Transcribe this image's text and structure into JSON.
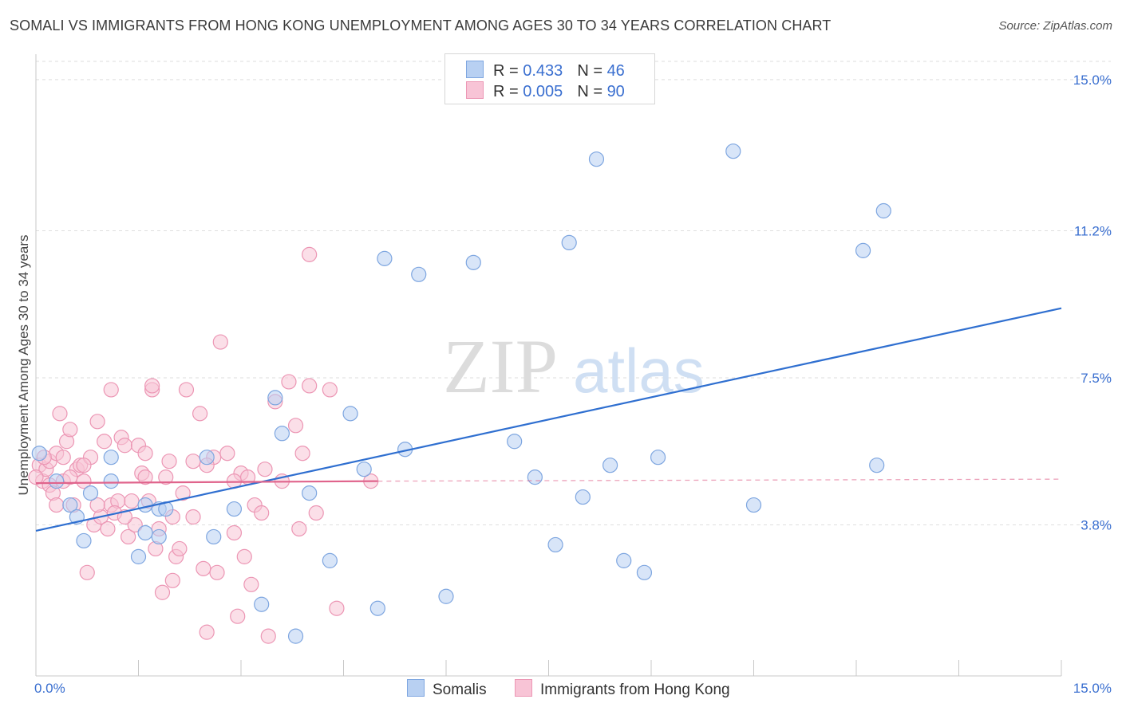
{
  "title": "SOMALI VS IMMIGRANTS FROM HONG KONG UNEMPLOYMENT AMONG AGES 30 TO 34 YEARS CORRELATION CHART",
  "source": "Source: ZipAtlas.com",
  "watermark": {
    "zip": "ZIP",
    "atlas": "atlas"
  },
  "legend": {
    "r_label": "R =",
    "n_label": "N =",
    "rows": [
      {
        "name": "Somalis",
        "r": "0.433",
        "n": "46",
        "fill": "#b8d0f2",
        "stroke": "#7ea6e0"
      },
      {
        "name": "Immigrants from Hong Kong",
        "r": "0.005",
        "n": "90",
        "fill": "#f8c4d6",
        "stroke": "#ec96b4"
      }
    ]
  },
  "chart_data": {
    "type": "scatter",
    "title": "SOMALI VS IMMIGRANTS FROM HONG KONG UNEMPLOYMENT AMONG AGES 30 TO 34 YEARS CORRELATION CHART",
    "xlabel": "",
    "ylabel": "Unemployment Among Ages 30 to 34 years",
    "xlim": [
      0,
      15
    ],
    "ylim": [
      0,
      15.5
    ],
    "x_tick_labels": [
      "0.0%",
      "15.0%"
    ],
    "y_ticks": [
      3.8,
      7.5,
      11.2,
      15.0
    ],
    "y_tick_labels": [
      "3.8%",
      "7.5%",
      "11.2%",
      "15.0%"
    ],
    "grid": true,
    "series": [
      {
        "name": "Somalis",
        "color": "#7ea6e0",
        "fill": "#b8d0f2",
        "line_color": "#2f6fd0",
        "trend": {
          "x": [
            0,
            15
          ],
          "y": [
            3.65,
            9.25
          ],
          "dashed_after": null
        },
        "points": [
          [
            0.05,
            5.6
          ],
          [
            0.3,
            4.9
          ],
          [
            0.5,
            4.3
          ],
          [
            0.6,
            4.0
          ],
          [
            0.7,
            3.4
          ],
          [
            0.8,
            4.6
          ],
          [
            1.1,
            5.5
          ],
          [
            1.6,
            3.6
          ],
          [
            1.5,
            3.0
          ],
          [
            1.6,
            4.3
          ],
          [
            1.8,
            3.5
          ],
          [
            1.8,
            4.2
          ],
          [
            1.9,
            4.2
          ],
          [
            2.5,
            5.5
          ],
          [
            2.6,
            3.5
          ],
          [
            2.9,
            4.2
          ],
          [
            3.3,
            1.8
          ],
          [
            3.5,
            7.0
          ],
          [
            3.6,
            6.1
          ],
          [
            3.8,
            1.0
          ],
          [
            4.0,
            4.6
          ],
          [
            4.3,
            2.9
          ],
          [
            4.6,
            6.6
          ],
          [
            4.8,
            5.2
          ],
          [
            5.0,
            1.7
          ],
          [
            5.1,
            10.5
          ],
          [
            5.4,
            5.7
          ],
          [
            5.6,
            10.1
          ],
          [
            6.0,
            2.0
          ],
          [
            6.4,
            10.4
          ],
          [
            7.0,
            5.9
          ],
          [
            7.3,
            5.0
          ],
          [
            7.6,
            3.3
          ],
          [
            7.8,
            10.9
          ],
          [
            8.0,
            4.5
          ],
          [
            8.2,
            13.0
          ],
          [
            8.4,
            5.3
          ],
          [
            8.6,
            2.9
          ],
          [
            8.9,
            2.6
          ],
          [
            9.1,
            5.5
          ],
          [
            10.2,
            13.2
          ],
          [
            10.5,
            4.3
          ],
          [
            12.1,
            10.7
          ],
          [
            12.3,
            5.3
          ],
          [
            12.4,
            11.7
          ],
          [
            1.1,
            4.9
          ]
        ]
      },
      {
        "name": "Immigrants from Hong Kong",
        "color": "#ec96b4",
        "fill": "#f8c4d6",
        "line_color": "#e0648c",
        "trend": {
          "x": [
            0,
            5.0
          ],
          "y": [
            4.85,
            4.9
          ],
          "dashed_to": [
            15,
            4.95
          ]
        },
        "points": [
          [
            0.05,
            5.3
          ],
          [
            0.1,
            4.9
          ],
          [
            0.15,
            5.2
          ],
          [
            0.2,
            4.8
          ],
          [
            0.2,
            5.4
          ],
          [
            0.25,
            4.6
          ],
          [
            0.3,
            5.6
          ],
          [
            0.35,
            6.6
          ],
          [
            0.4,
            5.5
          ],
          [
            0.4,
            4.9
          ],
          [
            0.45,
            5.9
          ],
          [
            0.5,
            6.2
          ],
          [
            0.55,
            4.3
          ],
          [
            0.6,
            5.2
          ],
          [
            0.65,
            5.3
          ],
          [
            0.7,
            4.9
          ],
          [
            0.75,
            2.6
          ],
          [
            0.8,
            5.5
          ],
          [
            0.85,
            3.8
          ],
          [
            0.9,
            6.4
          ],
          [
            0.95,
            4.0
          ],
          [
            1.0,
            5.9
          ],
          [
            1.05,
            3.7
          ],
          [
            1.1,
            7.2
          ],
          [
            1.1,
            4.3
          ],
          [
            1.2,
            4.4
          ],
          [
            1.25,
            6.0
          ],
          [
            1.3,
            5.8
          ],
          [
            1.35,
            3.5
          ],
          [
            1.4,
            4.4
          ],
          [
            1.45,
            3.8
          ],
          [
            1.5,
            5.8
          ],
          [
            1.55,
            5.1
          ],
          [
            1.6,
            5.0
          ],
          [
            1.65,
            4.4
          ],
          [
            1.7,
            7.2
          ],
          [
            1.7,
            7.3
          ],
          [
            1.75,
            3.2
          ],
          [
            1.8,
            3.7
          ],
          [
            1.85,
            2.1
          ],
          [
            1.9,
            5.0
          ],
          [
            1.95,
            5.4
          ],
          [
            2.0,
            2.4
          ],
          [
            2.05,
            3.0
          ],
          [
            2.1,
            3.2
          ],
          [
            2.15,
            4.6
          ],
          [
            2.2,
            7.2
          ],
          [
            2.3,
            5.4
          ],
          [
            2.3,
            4.0
          ],
          [
            2.4,
            6.6
          ],
          [
            2.45,
            2.7
          ],
          [
            2.5,
            1.1
          ],
          [
            2.6,
            5.5
          ],
          [
            2.65,
            2.6
          ],
          [
            2.7,
            8.4
          ],
          [
            2.8,
            5.6
          ],
          [
            2.9,
            3.6
          ],
          [
            2.95,
            1.5
          ],
          [
            3.0,
            5.1
          ],
          [
            3.05,
            3.0
          ],
          [
            3.1,
            5.0
          ],
          [
            3.15,
            2.3
          ],
          [
            3.2,
            4.3
          ],
          [
            3.3,
            4.1
          ],
          [
            3.35,
            5.2
          ],
          [
            3.4,
            1.0
          ],
          [
            3.5,
            6.9
          ],
          [
            3.6,
            4.9
          ],
          [
            3.7,
            7.4
          ],
          [
            3.8,
            6.3
          ],
          [
            3.85,
            3.7
          ],
          [
            3.9,
            5.6
          ],
          [
            4.0,
            7.3
          ],
          [
            4.0,
            10.6
          ],
          [
            4.1,
            4.1
          ],
          [
            4.3,
            7.2
          ],
          [
            4.4,
            1.7
          ],
          [
            4.9,
            4.9
          ],
          [
            0.0,
            5.0
          ],
          [
            0.12,
            5.5
          ],
          [
            0.3,
            4.3
          ],
          [
            0.5,
            5.0
          ],
          [
            0.7,
            5.3
          ],
          [
            0.9,
            4.3
          ],
          [
            1.15,
            4.1
          ],
          [
            1.3,
            4.0
          ],
          [
            1.6,
            5.6
          ],
          [
            2.0,
            4.0
          ],
          [
            2.5,
            5.3
          ],
          [
            2.9,
            4.9
          ]
        ]
      }
    ]
  },
  "axes": {
    "x_start_label": "0.0%",
    "x_end_label": "15.0%"
  }
}
